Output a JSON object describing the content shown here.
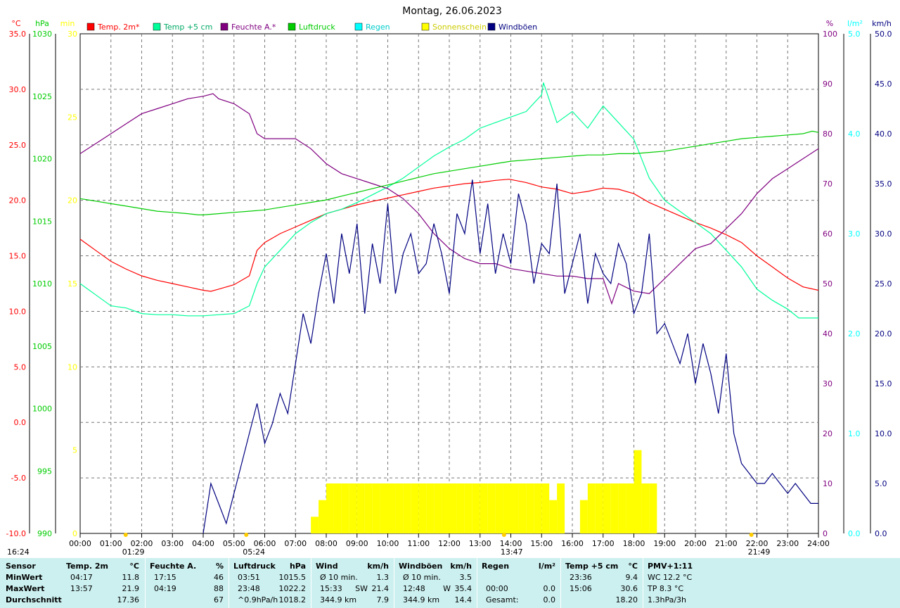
{
  "chart_data": {
    "type": "line",
    "title": "Montag, 26.06.2023",
    "x_ticks": [
      "00:00",
      "01:00",
      "02:00",
      "03:00",
      "04:00",
      "05:00",
      "06:00",
      "07:00",
      "08:00",
      "09:00",
      "10:00",
      "11:00",
      "12:00",
      "13:00",
      "14:00",
      "15:00",
      "16:00",
      "17:00",
      "18:00",
      "19:00",
      "20:00",
      "21:00",
      "22:00",
      "23:00",
      "24:00"
    ],
    "x_range_hours": [
      0,
      24
    ],
    "grid": true,
    "legend_position": "top",
    "axes": [
      {
        "id": "temp",
        "unit": "°C",
        "side": "left",
        "range": [
          -10,
          35
        ],
        "ticks": [
          "35.0",
          "30.0",
          "25.0",
          "20.0",
          "15.0",
          "10.0",
          "5.0",
          "0.0",
          "-5.0",
          "-10.0"
        ],
        "color": "#ff0000"
      },
      {
        "id": "press",
        "unit": "hPa",
        "side": "left",
        "range": [
          990,
          1030
        ],
        "ticks": [
          "1030",
          "1025",
          "1020",
          "1015",
          "1010",
          "1005",
          "1000",
          "995",
          "990"
        ],
        "color": "#00cc00"
      },
      {
        "id": "sun",
        "unit": "min",
        "side": "left",
        "range": [
          0,
          30
        ],
        "ticks": [
          "30",
          "25",
          "20",
          "15",
          "10",
          "5",
          "0"
        ],
        "color": "#ffff00"
      },
      {
        "id": "hum",
        "unit": "%",
        "side": "right",
        "range": [
          0,
          100
        ],
        "ticks": [
          "100",
          "90",
          "80",
          "70",
          "60",
          "50",
          "40",
          "30",
          "20",
          "10",
          "0"
        ],
        "color": "#800080"
      },
      {
        "id": "rain",
        "unit": "l/m²",
        "side": "right",
        "range": [
          0,
          5
        ],
        "ticks": [
          "5.0",
          "4.0",
          "3.0",
          "2.0",
          "1.0",
          "0.0"
        ],
        "color": "#00ffff"
      },
      {
        "id": "wind",
        "unit": "km/h",
        "side": "right",
        "range": [
          0,
          50
        ],
        "ticks": [
          "50.0",
          "45.0",
          "40.0",
          "35.0",
          "30.0",
          "25.0",
          "20.0",
          "15.0",
          "10.0",
          "5.0",
          "0.0"
        ],
        "color": "#000080"
      }
    ],
    "legend": [
      {
        "label": "Temp. 2m*",
        "color": "#ff0000"
      },
      {
        "label": "Temp +5 cm",
        "color": "#00ff99"
      },
      {
        "label": "Feuchte A.*",
        "color": "#800080"
      },
      {
        "label": "Luftdruck",
        "color": "#00cc00"
      },
      {
        "label": "Regen",
        "color": "#00ffff"
      },
      {
        "label": "Sonnenschein",
        "color": "#ffff00"
      },
      {
        "label": "Windböen",
        "color": "#000080"
      }
    ],
    "series": [
      {
        "name": "Temp. 2m*",
        "axis": "temp",
        "color": "#ff0000",
        "x": [
          0,
          0.5,
          1,
          1.5,
          2,
          2.5,
          3,
          3.5,
          4,
          4.25,
          4.5,
          5,
          5.5,
          5.75,
          6,
          6.5,
          7,
          7.5,
          8,
          8.5,
          9,
          9.5,
          10,
          10.5,
          11,
          11.5,
          12,
          12.5,
          13,
          13.5,
          13.95,
          14.5,
          15,
          15.5,
          16,
          16.5,
          17,
          17.5,
          18,
          18.5,
          19,
          19.5,
          20,
          20.5,
          21,
          21.5,
          22,
          22.5,
          23,
          23.5,
          24
        ],
        "y": [
          16.5,
          15.5,
          14.5,
          13.8,
          13.2,
          12.8,
          12.5,
          12.2,
          11.9,
          11.8,
          12.0,
          12.4,
          13.2,
          15.5,
          16.2,
          17.0,
          17.6,
          18.2,
          18.8,
          19.2,
          19.6,
          19.9,
          20.2,
          20.5,
          20.8,
          21.1,
          21.3,
          21.5,
          21.6,
          21.8,
          21.9,
          21.6,
          21.2,
          21.0,
          20.6,
          20.8,
          21.1,
          21.0,
          20.6,
          19.8,
          19.2,
          18.6,
          18.0,
          17.5,
          16.9,
          16.2,
          15.0,
          14.0,
          13.0,
          12.2,
          11.9
        ]
      },
      {
        "name": "Temp +5 cm",
        "axis": "temp",
        "color": "#00ff99",
        "x": [
          0,
          0.5,
          1,
          1.5,
          2,
          2.5,
          3,
          3.5,
          4,
          4.5,
          5,
          5.5,
          5.75,
          6,
          6.5,
          7,
          7.5,
          8,
          8.5,
          9,
          9.5,
          10,
          10.5,
          11,
          11.5,
          12,
          12.5,
          13,
          13.5,
          14,
          14.5,
          15,
          15.06,
          15.5,
          16,
          16.5,
          17,
          17.5,
          18,
          18.5,
          19,
          19.5,
          20,
          20.5,
          21,
          21.5,
          22,
          22.5,
          23,
          23.36,
          24
        ],
        "y": [
          12.5,
          11.5,
          10.5,
          10.3,
          9.8,
          9.7,
          9.7,
          9.6,
          9.6,
          9.7,
          9.8,
          10.5,
          12.5,
          14.0,
          15.5,
          17.0,
          18.0,
          18.8,
          19.2,
          19.8,
          20.5,
          21.2,
          22.0,
          23.0,
          24.0,
          24.8,
          25.5,
          26.5,
          27.0,
          27.5,
          28.0,
          29.5,
          30.6,
          27.0,
          28.0,
          26.5,
          28.5,
          27.0,
          25.5,
          22.0,
          20.0,
          19.0,
          18.0,
          17.0,
          15.5,
          14.0,
          12.0,
          11.0,
          10.2,
          9.4,
          9.4
        ]
      },
      {
        "name": "Feuchte A.*",
        "axis": "hum",
        "color": "#800080",
        "x": [
          0,
          0.5,
          1,
          1.5,
          2,
          2.5,
          3,
          3.5,
          4,
          4.32,
          4.5,
          5,
          5.5,
          5.75,
          6,
          6.5,
          7,
          7.5,
          8,
          8.5,
          9,
          9.5,
          10,
          10.5,
          11,
          11.5,
          12,
          12.5,
          13,
          13.5,
          14,
          14.5,
          15,
          15.5,
          16,
          16.5,
          17,
          17.28,
          17.5,
          18,
          18.5,
          19,
          19.5,
          20,
          20.5,
          21,
          21.5,
          22,
          22.5,
          23,
          23.5,
          24
        ],
        "y": [
          76,
          78,
          80,
          82,
          84,
          85,
          86,
          87,
          87.5,
          88,
          87,
          86,
          84,
          80,
          79,
          79,
          79,
          77,
          74,
          72,
          71,
          70,
          69,
          67,
          64,
          60,
          57,
          55,
          54,
          54,
          53,
          52.5,
          52,
          51.5,
          51.5,
          51,
          51,
          46,
          50,
          48.5,
          48,
          51,
          54,
          57,
          58,
          61,
          64,
          68,
          71,
          73,
          75,
          77
        ]
      },
      {
        "name": "Luftdruck",
        "axis": "press",
        "color": "#00cc00",
        "x": [
          0,
          0.5,
          1,
          1.5,
          2,
          2.5,
          3,
          3.5,
          3.85,
          4,
          4.5,
          5,
          5.5,
          6,
          6.5,
          7,
          7.5,
          8,
          8.5,
          9,
          9.5,
          10,
          10.5,
          11,
          11.5,
          12,
          12.5,
          13,
          13.5,
          14,
          14.5,
          15,
          15.5,
          16,
          16.5,
          17,
          17.5,
          18,
          18.5,
          19,
          19.5,
          20,
          20.5,
          21,
          21.5,
          22,
          22.5,
          23,
          23.5,
          23.8,
          24
        ],
        "y": [
          1016.8,
          1016.6,
          1016.4,
          1016.2,
          1016.0,
          1015.8,
          1015.7,
          1015.6,
          1015.5,
          1015.5,
          1015.6,
          1015.7,
          1015.8,
          1015.9,
          1016.1,
          1016.3,
          1016.5,
          1016.7,
          1017.0,
          1017.3,
          1017.6,
          1017.9,
          1018.2,
          1018.5,
          1018.8,
          1019.0,
          1019.2,
          1019.4,
          1019.6,
          1019.8,
          1019.9,
          1020.0,
          1020.1,
          1020.2,
          1020.3,
          1020.3,
          1020.4,
          1020.4,
          1020.5,
          1020.6,
          1020.8,
          1021.0,
          1021.2,
          1021.4,
          1021.6,
          1021.7,
          1021.8,
          1021.9,
          1022.0,
          1022.2,
          1022.1
        ]
      },
      {
        "name": "Windböen",
        "axis": "wind",
        "color": "#000080",
        "x": [
          4,
          4.25,
          4.5,
          4.75,
          5,
          5.25,
          5.5,
          5.75,
          6,
          6.25,
          6.5,
          6.75,
          7,
          7.25,
          7.5,
          7.75,
          8,
          8.25,
          8.5,
          8.75,
          9,
          9.25,
          9.5,
          9.75,
          10,
          10.25,
          10.5,
          10.75,
          11,
          11.25,
          11.5,
          11.75,
          12,
          12.25,
          12.5,
          12.75,
          13,
          13.25,
          13.5,
          13.75,
          14,
          14.25,
          14.5,
          14.75,
          15,
          15.25,
          15.5,
          15.75,
          16,
          16.25,
          16.5,
          16.75,
          17,
          17.25,
          17.5,
          17.75,
          18,
          18.25,
          18.5,
          18.75,
          19,
          19.25,
          19.5,
          19.75,
          20,
          20.25,
          20.5,
          20.75,
          21,
          21.25,
          21.5,
          21.75,
          22,
          22.25,
          22.5,
          22.75,
          23,
          23.25,
          23.5,
          23.75,
          24
        ],
        "y": [
          0,
          5,
          3,
          1,
          4,
          7,
          10,
          13,
          9,
          11,
          14,
          12,
          17,
          22,
          19,
          24,
          28,
          23,
          30,
          26,
          31,
          22,
          29,
          25,
          33,
          24,
          28,
          30,
          26,
          27,
          31,
          28,
          24,
          32,
          30,
          35.4,
          28,
          33,
          26,
          30,
          27,
          34,
          31,
          25,
          29,
          28,
          35,
          24,
          27,
          30,
          23,
          28,
          26,
          25,
          29,
          27,
          22,
          24,
          30,
          20,
          21,
          19,
          17,
          20,
          15,
          19,
          16,
          12,
          18,
          10,
          7,
          6,
          5,
          5,
          6,
          5,
          4,
          5,
          4,
          3,
          3
        ]
      }
    ],
    "sunshine_bars": {
      "name": "Sonnenschein",
      "axis": "sun",
      "color": "#ffff00",
      "x": [
        7.5,
        7.75,
        8,
        8.25,
        8.5,
        8.75,
        9,
        9.25,
        9.5,
        9.75,
        10,
        10.25,
        10.5,
        10.75,
        11,
        11.25,
        11.5,
        11.75,
        12,
        12.25,
        12.5,
        12.75,
        13,
        13.25,
        13.5,
        13.75,
        14,
        14.25,
        14.5,
        14.75,
        15,
        15.25,
        15.5,
        16.25,
        16.5,
        16.75,
        17,
        17.25,
        17.5,
        17.75,
        18,
        18.25,
        18.5
      ],
      "y": [
        1,
        2,
        3,
        3,
        3,
        3,
        3,
        3,
        3,
        3,
        3,
        3,
        3,
        3,
        3,
        3,
        3,
        3,
        3,
        3,
        3,
        3,
        3,
        3,
        3,
        3,
        3,
        3,
        3,
        3,
        3,
        2,
        3,
        2,
        3,
        3,
        3,
        3,
        3,
        3,
        5,
        3,
        3
      ]
    },
    "markers": [
      {
        "label": "16:24",
        "pos": "bottom-left"
      },
      {
        "label": "01:29",
        "hour": 1.48
      },
      {
        "label": "05:24",
        "hour": 5.4
      },
      {
        "label": "13:47",
        "hour": 13.78
      },
      {
        "label": "21:49",
        "hour": 21.82
      }
    ]
  },
  "stats": {
    "labels": {
      "sensor": "Sensor",
      "min": "MinWert",
      "max": "MaxWert",
      "avg": "Durchschnitt"
    },
    "sections": [
      {
        "id": "temp2m",
        "title": "Temp. 2m",
        "unit": "°C",
        "min_time": "04:17",
        "min_val": "11.8",
        "max_time": "13:57",
        "max_val": "21.9",
        "avg_time": "",
        "avg_val": "17.36"
      },
      {
        "id": "feuchte",
        "title": "Feuchte A.",
        "unit": "%",
        "min_time": "17:15",
        "min_val": "46",
        "max_time": "04:19",
        "max_val": "88",
        "avg_time": "",
        "avg_val": "67"
      },
      {
        "id": "luftdruck",
        "title": "Luftdruck",
        "unit": "hPa",
        "min_time": "03:51",
        "min_val": "1015.5",
        "max_time": "23:48",
        "max_val": "1022.2",
        "avg_time": "^0.9hPa/h",
        "avg_val": "1018.2"
      },
      {
        "id": "wind",
        "title": "Wind",
        "unit": "km/h",
        "min_time": "Ø 10 min.",
        "min_val": "1.3",
        "max_time": "15:33",
        "max_extra": "SW",
        "max_val": "21.4",
        "avg_time": "344.9 km",
        "avg_val": "7.9"
      },
      {
        "id": "windboeen",
        "title": "Windböen",
        "unit": "km/h",
        "min_time": "Ø 10 min.",
        "min_val": "3.5",
        "max_time": "12:48",
        "max_extra": "W",
        "max_val": "35.4",
        "avg_time": "344.9 km",
        "avg_val": "14.4"
      },
      {
        "id": "regen",
        "title": "Regen",
        "unit": "l/m²",
        "min_time": "",
        "min_val": "",
        "max_time": "00:00",
        "max_val": "0.0",
        "avg_time": "Gesamt:",
        "avg_val": "0.0"
      },
      {
        "id": "temp5cm",
        "title": "Temp +5 cm",
        "unit": "°C",
        "min_time": "23:36",
        "min_val": "9.4",
        "max_time": "15:06",
        "max_val": "30.6",
        "avg_time": "",
        "avg_val": "18.20"
      }
    ],
    "pmv": {
      "title": "PMV+1:11",
      "l1": "WC 12.2 °C",
      "l2": "TP 8.3 °C",
      "l3": "1.3hPa/3h"
    }
  }
}
